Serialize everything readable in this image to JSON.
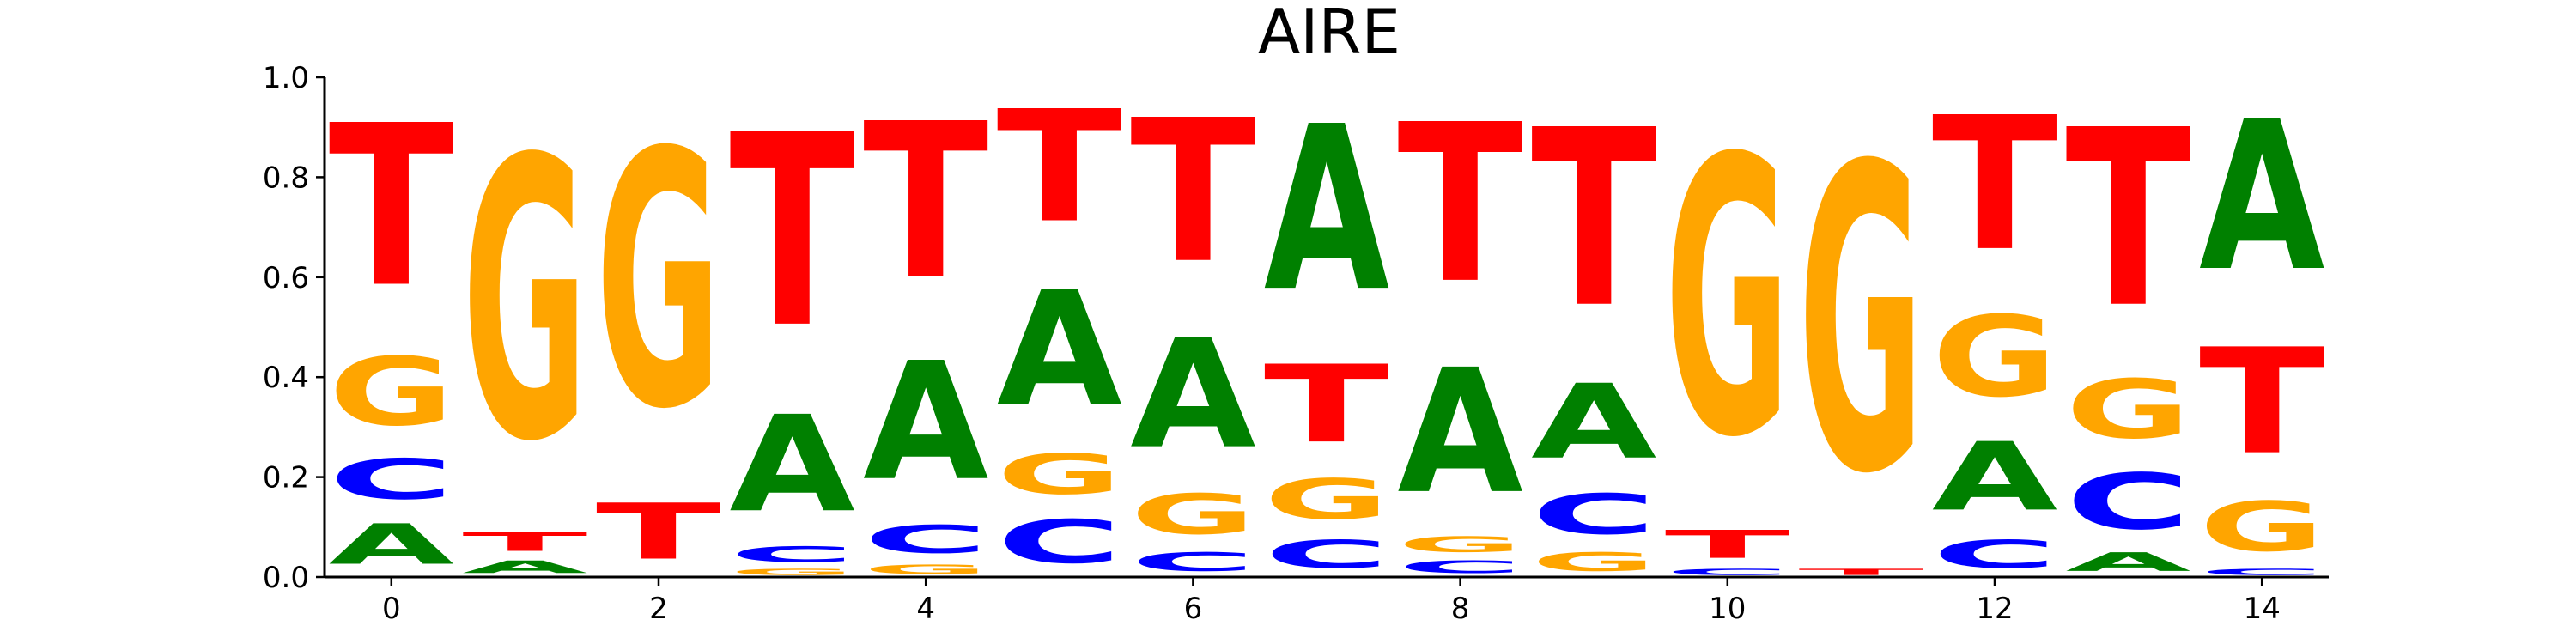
{
  "chart_data": {
    "type": "sequence-logo",
    "title": "AIRE",
    "xlabel": "",
    "ylabel": "",
    "ylim": [
      0,
      1.0
    ],
    "yticks": [
      "0.0",
      "0.2",
      "0.4",
      "0.6",
      "0.8",
      "1.0"
    ],
    "xticks": [
      "0",
      "2",
      "4",
      "6",
      "8",
      "10",
      "12",
      "14"
    ],
    "letter_colors": {
      "A": "#008000",
      "C": "#0000ff",
      "G": "#ffa500",
      "T": "#ff0000"
    },
    "positions": [
      {
        "x": 0,
        "letters": [
          {
            "base": "A",
            "value": 0.13
          },
          {
            "base": "C",
            "value": 0.13
          },
          {
            "base": "G",
            "value": 0.22
          },
          {
            "base": "T",
            "value": 0.52
          }
        ]
      },
      {
        "x": 1,
        "letters": [
          {
            "base": "A",
            "value": 0.04
          },
          {
            "base": "T",
            "value": 0.06
          },
          {
            "base": "G",
            "value": 0.9
          }
        ]
      },
      {
        "x": 2,
        "letters": [
          {
            "base": "T",
            "value": 0.18
          },
          {
            "base": "G",
            "value": 0.82
          }
        ]
      },
      {
        "x": 3,
        "letters": [
          {
            "base": "G",
            "value": 0.02
          },
          {
            "base": "C",
            "value": 0.05
          },
          {
            "base": "A",
            "value": 0.31
          },
          {
            "base": "T",
            "value": 0.62
          }
        ]
      },
      {
        "x": 4,
        "letters": [
          {
            "base": "G",
            "value": 0.03
          },
          {
            "base": "C",
            "value": 0.09
          },
          {
            "base": "A",
            "value": 0.38
          },
          {
            "base": "T",
            "value": 0.5
          }
        ]
      },
      {
        "x": 5,
        "letters": [
          {
            "base": "C",
            "value": 0.14
          },
          {
            "base": "G",
            "value": 0.13
          },
          {
            "base": "A",
            "value": 0.37
          },
          {
            "base": "T",
            "value": 0.36
          }
        ]
      },
      {
        "x": 6,
        "letters": [
          {
            "base": "C",
            "value": 0.06
          },
          {
            "base": "G",
            "value": 0.13
          },
          {
            "base": "A",
            "value": 0.35
          },
          {
            "base": "T",
            "value": 0.46
          }
        ]
      },
      {
        "x": 7,
        "letters": [
          {
            "base": "C",
            "value": 0.09
          },
          {
            "base": "G",
            "value": 0.13
          },
          {
            "base": "T",
            "value": 0.25
          },
          {
            "base": "A",
            "value": 0.53
          }
        ]
      },
      {
        "x": 8,
        "letters": [
          {
            "base": "C",
            "value": 0.04
          },
          {
            "base": "G",
            "value": 0.05
          },
          {
            "base": "A",
            "value": 0.4
          },
          {
            "base": "T",
            "value": 0.51
          }
        ]
      },
      {
        "x": 9,
        "letters": [
          {
            "base": "G",
            "value": 0.06
          },
          {
            "base": "C",
            "value": 0.13
          },
          {
            "base": "A",
            "value": 0.24
          },
          {
            "base": "T",
            "value": 0.57
          }
        ]
      },
      {
        "x": 10,
        "letters": [
          {
            "base": "C",
            "value": 0.02
          },
          {
            "base": "T",
            "value": 0.09
          },
          {
            "base": "G",
            "value": 0.89
          }
        ]
      },
      {
        "x": 11,
        "letters": [
          {
            "base": "T",
            "value": 0.02
          },
          {
            "base": "G",
            "value": 0.98
          }
        ]
      },
      {
        "x": 12,
        "letters": [
          {
            "base": "C",
            "value": 0.09
          },
          {
            "base": "A",
            "value": 0.22
          },
          {
            "base": "G",
            "value": 0.26
          },
          {
            "base": "T",
            "value": 0.43
          }
        ]
      },
      {
        "x": 13,
        "letters": [
          {
            "base": "A",
            "value": 0.06
          },
          {
            "base": "C",
            "value": 0.18
          },
          {
            "base": "G",
            "value": 0.19
          },
          {
            "base": "T",
            "value": 0.57
          }
        ]
      },
      {
        "x": 14,
        "letters": [
          {
            "base": "C",
            "value": 0.02
          },
          {
            "base": "G",
            "value": 0.16
          },
          {
            "base": "T",
            "value": 0.34
          },
          {
            "base": "A",
            "value": 0.48
          }
        ]
      }
    ]
  }
}
